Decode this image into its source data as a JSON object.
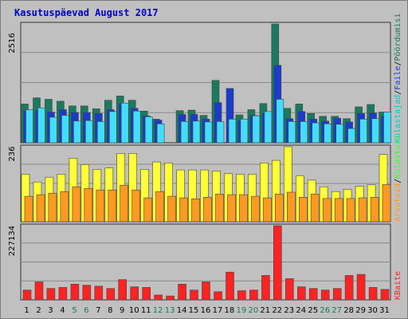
{
  "chart_data": {
    "type": "bar",
    "title": "Kasutuspäevad August 2017",
    "categories": [
      "1",
      "2",
      "3",
      "4",
      "5",
      "6",
      "7",
      "8",
      "9",
      "10",
      "11",
      "12",
      "13",
      "14",
      "15",
      "16",
      "17",
      "18",
      "19",
      "20",
      "21",
      "22",
      "23",
      "24",
      "25",
      "26",
      "27",
      "28",
      "29",
      "30",
      "31"
    ],
    "weekend_days": [
      "5",
      "6",
      "12",
      "13",
      "19",
      "20",
      "26",
      "27"
    ],
    "colors": {
      "kulastajad": "#00cccc",
      "kulastused": "#33ff33",
      "leheklicks": "#1a7a5e",
      "failid": "#1a3ccc",
      "poordumisi": "#44ddff",
      "arvuteid": "#ffff33",
      "kulastuste_arv": "#ff9922",
      "kbaite": "#ff2222",
      "weekday_label": "#000000",
      "weekend_label": "#1a7a5e",
      "title": "#0000cc"
    },
    "panels": [
      {
        "ymax_label": "2516",
        "ylim": [
          0,
          2516
        ],
        "side_legend": [
          {
            "text": "Külastajad",
            "color": "#00cccc"
          },
          {
            "text": "/",
            "color": "#000000"
          },
          {
            "text": "Faile",
            "color": "#1a3ccc"
          },
          {
            "text": "/",
            "color": "#000000"
          },
          {
            "text": "Pöördumisi",
            "color": "#1a7a5e"
          }
        ],
        "series": [
          {
            "name": "Külastajad",
            "color": "#1a7a5e",
            "values": [
              820,
              950,
              920,
              880,
              780,
              780,
              720,
              900,
              990,
              900,
              670,
              500,
              0,
              680,
              690,
              580,
              1320,
              0,
              590,
              700,
              830,
              2516,
              730,
              820,
              620,
              560,
              560,
              510,
              760,
              810,
              650
            ]
          },
          {
            "name": "Faile",
            "color": "#1a3ccc",
            "values": [
              680,
              680,
              650,
              700,
              640,
              640,
              620,
              700,
              830,
              730,
              570,
              480,
              0,
              600,
              600,
              500,
              850,
              1150,
              470,
              580,
              620,
              1640,
              510,
              660,
              500,
              460,
              520,
              440,
              620,
              630,
              560
            ]
          },
          {
            "name": "Pöördumisi",
            "color": "#44ddff",
            "values": [
              700,
              740,
              540,
              580,
              460,
              470,
              450,
              660,
              840,
              670,
              550,
              400,
              0,
              450,
              460,
              440,
              450,
              500,
              500,
              570,
              660,
              920,
              450,
              450,
              420,
              400,
              390,
              300,
              500,
              510,
              650
            ]
          }
        ]
      },
      {
        "ymax_label": "236",
        "ylim": [
          0,
          236
        ],
        "side_legend": [
          {
            "text": "Arvuteid",
            "color": "#ff9922"
          },
          {
            "text": "/",
            "color": "#000000"
          },
          {
            "text": "Külastusi",
            "color": "#33ff33"
          }
        ],
        "series": [
          {
            "name": "Arvuteid",
            "color": "#ffff33",
            "values": [
              150,
              125,
              140,
              150,
              200,
              180,
              165,
              169,
              215,
              215,
              165,
              188,
              185,
              163,
              163,
              163,
              160,
              152,
              150,
              150,
              185,
              193,
              236,
              145,
              131,
              110,
              95,
              102,
              112,
              116,
              212
            ]
          },
          {
            "name": "Külastusi",
            "color": "#ff9922",
            "values": [
              80,
              85,
              90,
              95,
              110,
              105,
              100,
              100,
              115,
              100,
              75,
              95,
              80,
              75,
              72,
              77,
              87,
              85,
              85,
              80,
              75,
              87,
              93,
              77,
              87,
              73,
              73,
              73,
              75,
              77,
              117
            ]
          }
        ]
      },
      {
        "ymax_label": "227134",
        "ylim": [
          0,
          227134
        ],
        "side_legend": [
          {
            "text": "KBaite",
            "color": "#ff2222"
          }
        ],
        "series": [
          {
            "name": "KBaite",
            "color": "#ff2222",
            "values": [
              30000,
              55000,
              35000,
              38000,
              48000,
              45000,
              42000,
              35000,
              62000,
              40000,
              38000,
              15000,
              12000,
              48000,
              30000,
              55000,
              25000,
              85000,
              28000,
              30000,
              75000,
              227134,
              65000,
              40000,
              35000,
              30000,
              35000,
              75000,
              78000,
              38000,
              32000
            ]
          }
        ]
      }
    ]
  }
}
